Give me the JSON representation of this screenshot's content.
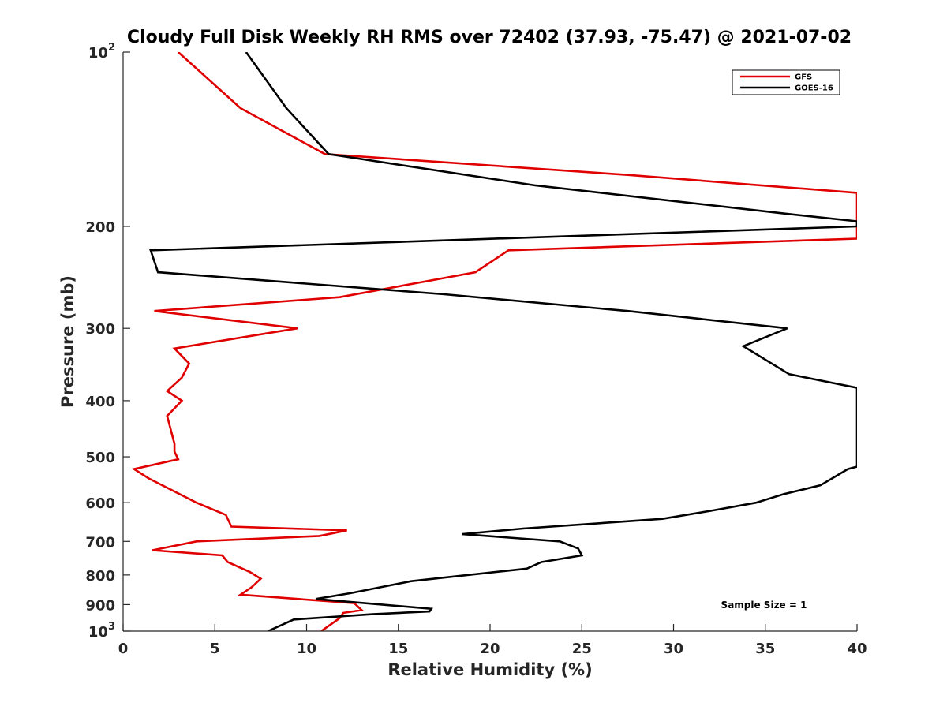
{
  "chart_data": {
    "type": "line",
    "title": "Cloudy Full Disk Weekly RH RMS over 72402 (37.93, -75.47) @ 2021-07-02",
    "xlabel": "Relative Humidity (%)",
    "ylabel": "Pressure (mb)",
    "xlim": [
      0,
      40
    ],
    "ylim": [
      100,
      1000
    ],
    "yscale": "log",
    "y_reversed": true,
    "grid": false,
    "legend_position": "top-right",
    "xticks": [
      "0",
      "5",
      "10",
      "15",
      "20",
      "25",
      "30",
      "35",
      "40"
    ],
    "yticks": [
      {
        "value": 100,
        "base": "10",
        "exp": "2"
      },
      {
        "value": 200,
        "label": "200"
      },
      {
        "value": 300,
        "label": "300"
      },
      {
        "value": 400,
        "label": "400"
      },
      {
        "value": 500,
        "label": "500"
      },
      {
        "value": 600,
        "label": "600"
      },
      {
        "value": 700,
        "label": "700"
      },
      {
        "value": 800,
        "label": "800"
      },
      {
        "value": 900,
        "label": "900"
      },
      {
        "value": 1000,
        "base": "10",
        "exp": "3"
      }
    ],
    "series": [
      {
        "name": "GFS",
        "color": "#e00000",
        "points": [
          [
            3.0,
            100
          ],
          [
            6.4,
            125
          ],
          [
            11.0,
            150
          ],
          [
            27.5,
            163
          ],
          [
            40.0,
            175
          ],
          [
            40.0,
            210
          ],
          [
            21.0,
            220
          ],
          [
            19.2,
            240
          ],
          [
            11.8,
            265
          ],
          [
            1.7,
            280
          ],
          [
            9.5,
            300
          ],
          [
            2.8,
            325
          ],
          [
            3.6,
            345
          ],
          [
            3.2,
            365
          ],
          [
            2.4,
            385
          ],
          [
            3.2,
            400
          ],
          [
            2.4,
            425
          ],
          [
            2.8,
            475
          ],
          [
            2.8,
            490
          ],
          [
            3.0,
            505
          ],
          [
            0.6,
            525
          ],
          [
            1.4,
            545
          ],
          [
            4.0,
            600
          ],
          [
            5.6,
            630
          ],
          [
            5.9,
            660
          ],
          [
            12.2,
            670
          ],
          [
            10.7,
            685
          ],
          [
            4.0,
            700
          ],
          [
            1.6,
            725
          ],
          [
            5.4,
            740
          ],
          [
            5.7,
            760
          ],
          [
            6.9,
            790
          ],
          [
            7.5,
            812
          ],
          [
            7.0,
            840
          ],
          [
            6.4,
            865
          ],
          [
            12.6,
            895
          ],
          [
            13.0,
            920
          ],
          [
            12.0,
            930
          ],
          [
            11.8,
            950
          ],
          [
            10.8,
            1000
          ]
        ]
      },
      {
        "name": "GOES-16",
        "color": "#000000",
        "points": [
          [
            6.7,
            100
          ],
          [
            8.9,
            125
          ],
          [
            11.2,
            150
          ],
          [
            22.5,
            170
          ],
          [
            36.0,
            190
          ],
          [
            40.0,
            196
          ],
          [
            40.0,
            200
          ],
          [
            1.5,
            220
          ],
          [
            1.9,
            240
          ],
          [
            17.5,
            262
          ],
          [
            27.5,
            280
          ],
          [
            36.2,
            300
          ],
          [
            33.8,
            322
          ],
          [
            36.3,
            360
          ],
          [
            40.0,
            380
          ],
          [
            40.0,
            520
          ],
          [
            39.5,
            525
          ],
          [
            38.0,
            560
          ],
          [
            36.0,
            580
          ],
          [
            34.5,
            600
          ],
          [
            32.0,
            620
          ],
          [
            29.4,
            640
          ],
          [
            21.8,
            665
          ],
          [
            18.5,
            680
          ],
          [
            23.8,
            700
          ],
          [
            24.8,
            720
          ],
          [
            25.0,
            740
          ],
          [
            22.8,
            760
          ],
          [
            22.0,
            780
          ],
          [
            15.7,
            820
          ],
          [
            12.4,
            860
          ],
          [
            10.5,
            880
          ],
          [
            16.8,
            915
          ],
          [
            16.7,
            925
          ],
          [
            13.6,
            935
          ],
          [
            9.3,
            955
          ],
          [
            7.9,
            1000
          ]
        ]
      }
    ],
    "annotations": [
      "Sample Size = 1"
    ]
  }
}
